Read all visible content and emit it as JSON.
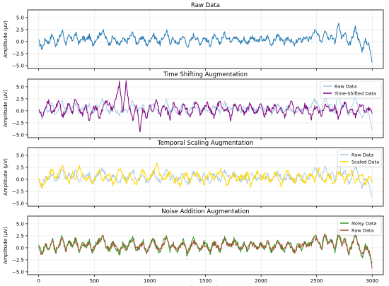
{
  "figure": {
    "shared_xlabel": "Time Samples"
  },
  "chart_data": [
    {
      "type": "line",
      "title": "Raw Data",
      "ylabel": "Amplitude (µV)",
      "xlabel": "",
      "xlim": [
        -100,
        3100
      ],
      "ylim": [
        -5.6,
        6.6
      ],
      "xticks": [
        0,
        500,
        1000,
        1500,
        2000,
        2500,
        3000
      ],
      "yticks": [
        -5.0,
        -2.5,
        0.0,
        2.5,
        5.0
      ],
      "ytick_labels": [
        "−5.0",
        "−2.5",
        "0.0",
        "2.5",
        "5.0"
      ],
      "grid": true,
      "legend": null,
      "series": [
        {
          "color": "#1f77b4",
          "style": "solid",
          "x_range": [
            0,
            2999
          ],
          "values": [
            0.0,
            -1.5,
            0.6,
            -0.3,
            1.6,
            -0.7,
            0.4,
            2.4,
            -0.5,
            1.1,
            0.3,
            1.7,
            -0.4,
            0.9,
            0.2,
            1.2,
            -0.6,
            0.5,
            1.4,
            2.3,
            0.6,
            -0.5,
            1.0,
            0.1,
            -0.9,
            0.6,
            -0.2,
            0.8,
            1.9,
            -0.3,
            0.2,
            1.1,
            -0.8,
            0.3,
            1.5,
            0.4,
            -0.5,
            0.9,
            2.1,
            -0.2,
            0.7,
            -0.6,
            0.3,
            1.3,
            -1.0,
            0.0,
            1.4,
            0.6,
            -0.4,
            0.9,
            0.2,
            -0.7,
            1.2,
            0.3,
            -0.3,
            1.7,
            0.9,
            0.2,
            1.3,
            0.5,
            -0.2,
            0.7,
            -0.5,
            1.1,
            0.4,
            -0.1,
            0.8,
            0.0,
            1.2,
            -0.6,
            0.2,
            1.5,
            0.3,
            -0.4,
            0.9,
            0.1,
            -0.8,
            0.6,
            0.1,
            1.0,
            0.3,
            0.9,
            2.3,
            1.1,
            0.0,
            2.8,
            0.7,
            1.5,
            -0.5,
            4.2,
            0.6,
            1.8,
            -1.1,
            0.5,
            3.0,
            0.4,
            -1.8,
            0.2,
            -0.6,
            -3.9
          ]
        }
      ]
    },
    {
      "type": "line",
      "title": "Time Shifting Augmentation",
      "ylabel": "Amplitude (µV)",
      "xlabel": "",
      "xlim": [
        -100,
        3100
      ],
      "ylim": [
        -5.6,
        6.6
      ],
      "xticks": [
        0,
        500,
        1000,
        1500,
        2000,
        2500,
        3000
      ],
      "yticks": [
        -5.0,
        -2.5,
        0.0,
        2.5,
        5.0
      ],
      "ytick_labels": [
        "−5.0",
        "−2.5",
        "0.0",
        "2.5",
        "5.0"
      ],
      "grid": true,
      "legend": "upper right",
      "series": [
        {
          "name": "Raw Data",
          "color": "#a6c8e4",
          "style": "solid",
          "x_range": [
            0,
            2999
          ],
          "values": [
            0.0,
            -1.5,
            0.6,
            -0.3,
            1.6,
            -0.7,
            0.4,
            2.4,
            -0.5,
            1.1,
            0.3,
            1.7,
            -0.4,
            0.9,
            0.2,
            1.2,
            -0.6,
            0.5,
            1.4,
            2.3,
            0.6,
            -0.5,
            1.0,
            0.1,
            -0.9,
            0.6,
            -0.2,
            0.8,
            1.9,
            -0.3,
            0.2,
            1.1,
            -0.8,
            0.3,
            1.5,
            0.4,
            -0.5,
            0.9,
            2.1,
            -0.2,
            0.7,
            -0.6,
            0.3,
            1.3,
            -1.0,
            0.0,
            1.4,
            0.6,
            -0.4,
            0.9,
            0.2,
            -0.7,
            1.2,
            0.3,
            -0.3,
            1.7,
            0.9,
            0.2,
            1.3,
            0.5,
            -0.2,
            0.7,
            -0.5,
            1.1,
            0.4,
            -0.1,
            0.8,
            0.0,
            1.2,
            -0.6,
            0.2,
            1.5,
            0.3,
            -0.4,
            0.9,
            0.1,
            -0.8,
            0.6,
            0.1,
            1.0,
            0.3,
            0.9,
            2.3,
            1.1,
            0.0,
            2.8,
            0.7,
            1.5,
            -0.5,
            4.2,
            0.6,
            1.8,
            -1.1,
            0.5,
            3.0,
            0.4,
            -1.8,
            0.2,
            -0.6,
            -3.9
          ]
        },
        {
          "name": "Time-Shifted Data",
          "color": "#800080",
          "style": "solid",
          "x_range": [
            0,
            2999
          ],
          "values": [
            0.3,
            -1.2,
            0.8,
            1.9,
            -0.6,
            0.5,
            2.4,
            -1.3,
            0.2,
            1.5,
            -0.4,
            2.8,
            0.6,
            -0.9,
            1.2,
            -2.0,
            0.4,
            1.0,
            -1.6,
            0.7,
            2.1,
            1.3,
            0.1,
            2.6,
            5.8,
            -0.8,
            6.2,
            0.5,
            -2.1,
            1.8,
            -4.6,
            0.6,
            -1.4,
            1.1,
            -0.3,
            2.6,
            -1.2,
            0.9,
            0.2,
            -1.5,
            1.4,
            0.3,
            -0.6,
            1.8,
            0.2,
            -1.0,
            0.8,
            2.2,
            -0.7,
            0.4,
            1.5,
            0.0,
            -1.2,
            0.9,
            2.0,
            -0.5,
            0.6,
            -1.8,
            1.3,
            0.2,
            1.0,
            -0.6,
            0.4,
            1.6,
            -0.9,
            0.3,
            1.2,
            -1.1,
            0.7,
            0.0,
            1.5,
            -0.4,
            0.8,
            -1.3,
            0.5,
            1.9,
            -0.2,
            0.6,
            -0.8,
            1.1,
            0.3,
            -1.4,
            0.9,
            0.1,
            -0.7,
            1.4,
            0.4,
            -0.3,
            1.0,
            -1.6,
            0.5,
            1.7,
            -0.5,
            0.3,
            -1.1,
            0.8,
            1.2,
            -0.2,
            0.4,
            -0.6
          ]
        }
      ]
    },
    {
      "type": "line",
      "title": "Temporal Scaling Augmentation",
      "ylabel": "Amplitude (µV)",
      "xlabel": "",
      "xlim": [
        -100,
        3100
      ],
      "ylim": [
        -5.6,
        6.6
      ],
      "xticks": [
        0,
        500,
        1000,
        1500,
        2000,
        2500,
        3000
      ],
      "yticks": [
        -5.0,
        -2.5,
        0.0,
        2.5,
        5.0
      ],
      "ytick_labels": [
        "−5.0",
        "−2.5",
        "0.0",
        "2.5",
        "5.0"
      ],
      "grid": true,
      "legend": "upper right",
      "series": [
        {
          "name": "Raw Data",
          "color": "#a6c8e4",
          "style": "solid",
          "x_range": [
            0,
            2999
          ],
          "values": [
            0.0,
            -1.5,
            0.6,
            -0.3,
            1.6,
            -0.7,
            0.4,
            2.4,
            -0.5,
            1.1,
            0.3,
            1.7,
            -0.4,
            0.9,
            0.2,
            1.2,
            -0.6,
            0.5,
            1.4,
            2.3,
            0.6,
            -0.5,
            1.0,
            0.1,
            -0.9,
            0.6,
            -0.2,
            0.8,
            1.9,
            -0.3,
            0.2,
            1.1,
            -0.8,
            0.3,
            1.5,
            0.4,
            -0.5,
            0.9,
            2.1,
            -0.2,
            0.7,
            -0.6,
            0.3,
            1.3,
            -1.0,
            0.0,
            1.4,
            0.6,
            -0.4,
            0.9,
            0.2,
            -0.7,
            1.2,
            0.3,
            -0.3,
            1.7,
            0.9,
            0.2,
            1.3,
            0.5,
            -0.2,
            0.7,
            -0.5,
            1.1,
            0.4,
            -0.1,
            0.8,
            0.0,
            1.2,
            -0.6,
            0.2,
            1.5,
            0.3,
            -0.4,
            0.9,
            0.1,
            -0.8,
            0.6,
            0.1,
            1.0,
            0.3,
            0.9,
            2.3,
            1.1,
            0.0,
            2.8,
            0.7,
            1.5,
            -0.5,
            4.2,
            0.6,
            1.8,
            -1.1,
            0.5,
            3.0,
            0.4,
            -1.8,
            0.2,
            -0.6,
            -3.9
          ]
        },
        {
          "name": "Scaled Data",
          "color": "#ffd700",
          "style": "solid",
          "x_range": [
            0,
            2999
          ],
          "values": [
            0.0,
            -1.6,
            -0.4,
            0.8,
            2.3,
            -0.3,
            1.4,
            3.0,
            0.6,
            -0.8,
            1.6,
            0.2,
            2.8,
            1.1,
            -0.5,
            0.9,
            -1.2,
            0.4,
            1.8,
            -0.3,
            0.7,
            1.5,
            -1.0,
            0.3,
            2.0,
            0.9,
            -0.6,
            1.1,
            0.0,
            -1.4,
            0.8,
            1.9,
            -0.2,
            0.6,
            1.3,
            3.2,
            1.0,
            -0.4,
            0.7,
            1.7,
            -0.8,
            0.2,
            -1.5,
            0.5,
            1.2,
            -0.6,
            0.9,
            1.6,
            0.1,
            -0.9,
            0.6,
            1.4,
            -0.3,
            1.0,
            2.1,
            0.3,
            -1.2,
            0.5,
            1.1,
            -0.4,
            0.8,
            0.0,
            1.5,
            -1.3,
            0.4,
            1.7,
            -0.2,
            0.9,
            0.2,
            -0.7,
            1.3,
            0.5,
            -1.6,
            0.8,
            1.9,
            0.1,
            -0.5,
            1.2,
            0.4,
            -1.0,
            0.6,
            1.4,
            -0.3,
            2.2,
            0.7,
            -0.8,
            1.0,
            0.2,
            -1.1,
            1.6,
            0.5,
            -0.4,
            0.9,
            1.8,
            -0.6,
            0.3,
            1.1,
            -1.2,
            0.4,
            -0.5
          ]
        }
      ]
    },
    {
      "type": "line",
      "title": "Noise Addition Augmentation",
      "ylabel": "Amplitude (µV)",
      "xlabel": "Time Samples",
      "xlim": [
        -100,
        3100
      ],
      "ylim": [
        -5.6,
        6.6
      ],
      "xticks": [
        0,
        500,
        1000,
        1500,
        2000,
        2500,
        3000
      ],
      "xtick_labels": [
        "0",
        "500",
        "1000",
        "1500",
        "2000",
        "2500",
        "3000"
      ],
      "yticks": [
        -5.0,
        -2.5,
        0.0,
        2.5,
        5.0
      ],
      "ytick_labels": [
        "−5.0",
        "−2.5",
        "0.0",
        "2.5",
        "5.0"
      ],
      "grid": true,
      "legend": "upper right",
      "series": [
        {
          "name": "Noisy Data",
          "color": "#2ca02c",
          "style": "solid",
          "x_range": [
            0,
            2999
          ],
          "values": [
            0.4,
            -1.3,
            0.9,
            -0.6,
            1.9,
            -1.1,
            0.6,
            2.8,
            -0.8,
            1.5,
            0.1,
            2.0,
            -0.7,
            1.3,
            -0.1,
            1.6,
            -0.9,
            0.8,
            1.7,
            2.7,
            0.3,
            -0.8,
            1.4,
            -0.2,
            -1.3,
            0.9,
            -0.5,
            1.2,
            2.3,
            -0.6,
            0.5,
            1.5,
            -1.1,
            0.6,
            1.9,
            0.1,
            -0.8,
            1.3,
            2.5,
            -0.5,
            1.0,
            -0.9,
            0.6,
            1.7,
            -1.4,
            0.3,
            1.8,
            0.9,
            -0.7,
            1.2,
            0.5,
            -1.0,
            1.6,
            0.0,
            -0.6,
            2.1,
            1.2,
            -0.1,
            1.7,
            0.8,
            -0.5,
            1.0,
            -0.8,
            1.4,
            0.7,
            -0.4,
            1.1,
            -0.3,
            1.6,
            -0.9,
            0.5,
            1.8,
            0.0,
            -0.7,
            1.2,
            0.4,
            -1.1,
            0.9,
            -0.2,
            1.3,
            0.6,
            1.2,
            2.6,
            1.4,
            -0.3,
            2.9,
            1.0,
            1.7,
            -0.8,
            3.0,
            0.9,
            2.0,
            -1.4,
            0.8,
            2.4,
            0.7,
            -2.1,
            0.5,
            -0.9,
            -3.4
          ]
        },
        {
          "name": "Raw Data",
          "color": "#a0522d",
          "style": "solid",
          "x_range": [
            0,
            2999
          ],
          "values": [
            0.0,
            -1.5,
            0.6,
            -0.3,
            1.6,
            -0.7,
            0.4,
            2.4,
            -0.5,
            1.1,
            0.3,
            1.7,
            -0.4,
            0.9,
            0.2,
            1.2,
            -0.6,
            0.5,
            1.4,
            2.3,
            0.6,
            -0.5,
            1.0,
            0.1,
            -0.9,
            0.6,
            -0.2,
            0.8,
            1.9,
            -0.3,
            0.2,
            1.1,
            -0.8,
            0.3,
            1.5,
            0.4,
            -0.5,
            0.9,
            2.1,
            -0.2,
            0.7,
            -0.6,
            0.3,
            1.3,
            -1.0,
            0.0,
            1.4,
            0.6,
            -0.4,
            0.9,
            0.2,
            -0.7,
            1.2,
            0.3,
            -0.3,
            1.7,
            0.9,
            0.2,
            1.3,
            0.5,
            -0.2,
            0.7,
            -0.5,
            1.1,
            0.4,
            -0.1,
            0.8,
            0.0,
            1.2,
            -0.6,
            0.2,
            1.5,
            0.3,
            -0.4,
            0.9,
            0.1,
            -0.8,
            0.6,
            0.1,
            1.0,
            0.3,
            0.9,
            2.3,
            1.1,
            0.0,
            2.8,
            0.7,
            1.5,
            -0.5,
            4.2,
            0.6,
            1.8,
            -1.1,
            0.5,
            3.0,
            0.4,
            -1.8,
            0.2,
            -0.6,
            -3.9
          ]
        }
      ]
    }
  ]
}
